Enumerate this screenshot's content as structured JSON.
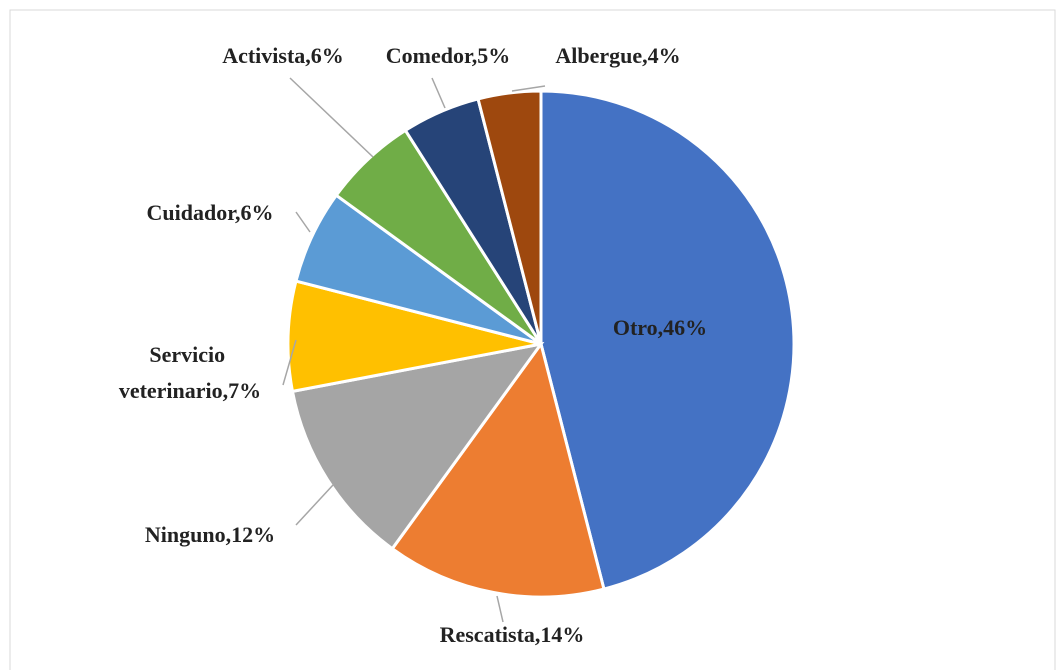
{
  "chart_data": {
    "type": "pie",
    "values": [
      46,
      14,
      12,
      7,
      6,
      6,
      5,
      4
    ],
    "value_labels": [
      "Otro,46%",
      "Rescatista,14%",
      "Ninguno,12%",
      "Servicio veterinario,7%",
      "Cuidador,6%",
      "Activista,6%",
      "Comedor,5%",
      "Albergue,4%"
    ],
    "colors": [
      "#4472c4",
      "#ed7d31",
      "#a5a5a5",
      "#ffc000",
      "#5b9bd5",
      "#70ad47",
      "#264478",
      "#9e480e"
    ]
  }
}
